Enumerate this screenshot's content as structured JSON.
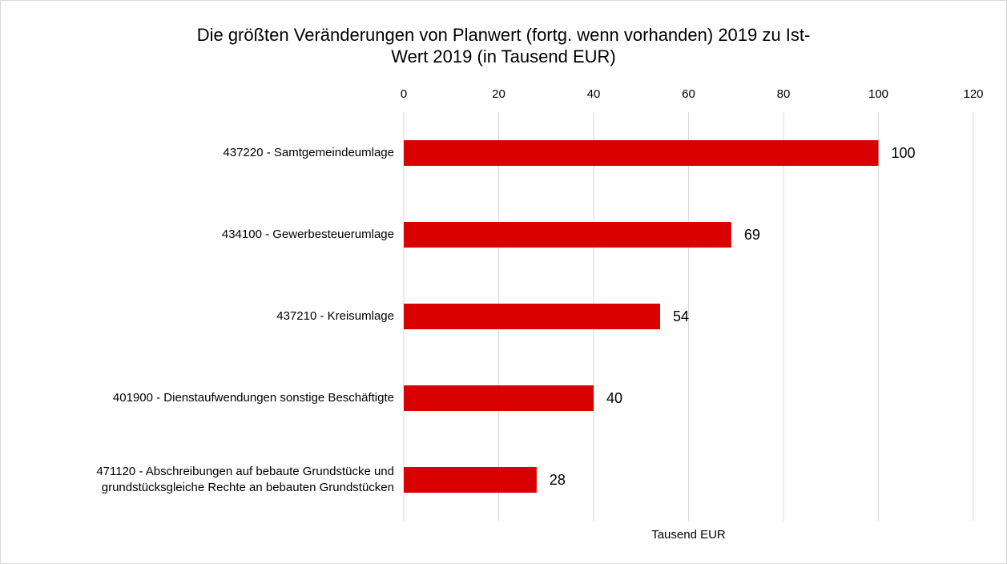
{
  "chart_data": {
    "type": "bar",
    "orientation": "horizontal",
    "title": "Die größten Veränderungen von  Planwert (fortg. wenn vorhanden) 2019  zu  Ist-\nWert 2019  (in Tausend EUR)",
    "categories": [
      "437220 - Samtgemeindeumlage",
      "434100 - Gewerbesteuerumlage",
      "437210 - Kreisumlage",
      "401900 - Dienstaufwendungen sonstige Beschäftigte",
      "471120 - Abschreibungen auf bebaute Grundstücke und\ngrundstücksgleiche Rechte an bebauten Grundstücken"
    ],
    "values": [
      100,
      69,
      54,
      40,
      28
    ],
    "color": "#d90000",
    "x_label": "Tausend EUR",
    "xlim": [
      0,
      120
    ],
    "xticks": [
      0,
      20,
      40,
      60,
      80,
      100,
      120
    ],
    "grid": true
  }
}
